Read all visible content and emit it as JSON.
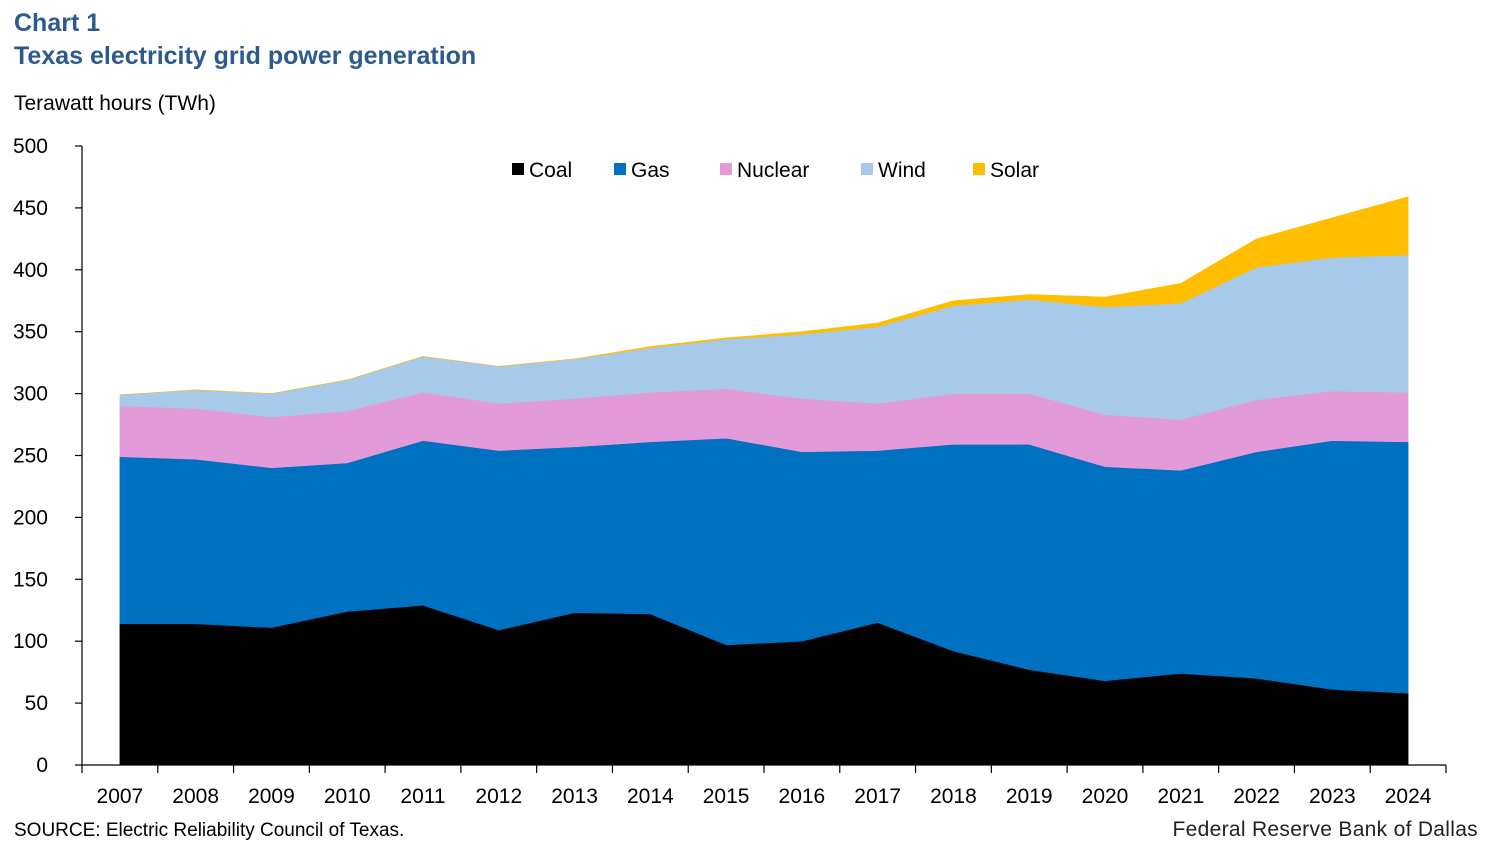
{
  "header": {
    "chart_label": "Chart 1",
    "title": "Texas electricity grid power generation",
    "unit_label": "Terawatt hours (TWh)"
  },
  "footer": {
    "source": "SOURCE: Electric Reliability Council of Texas.",
    "credit": "Federal Reserve Bank of Dallas"
  },
  "colors": {
    "coal": "#000000",
    "gas": "#0070c0",
    "nuclear": "#e39ad8",
    "wind": "#a7c9ea",
    "solar": "#ffbf00",
    "title": "#2c5a8c"
  },
  "chart_data": {
    "type": "area",
    "stacked": true,
    "title": "Texas electricity grid power generation",
    "ylabel": "Terawatt hours (TWh)",
    "xlabel": "",
    "ylim": [
      0,
      500
    ],
    "yticks": [
      0,
      50,
      100,
      150,
      200,
      250,
      300,
      350,
      400,
      450,
      500
    ],
    "grid": false,
    "legend": "top-center",
    "categories": [
      "2007",
      "2008",
      "2009",
      "2010",
      "2011",
      "2012",
      "2013",
      "2014",
      "2015",
      "2016",
      "2017",
      "2018",
      "2019",
      "2020",
      "2021",
      "2022",
      "2023",
      "2024"
    ],
    "series": [
      {
        "name": "Coal",
        "key": "coal",
        "values": [
          114,
          114,
          111,
          124,
          129,
          109,
          123,
          122,
          97,
          100,
          115,
          92,
          77,
          68,
          74,
          70,
          61,
          58
        ]
      },
      {
        "name": "Gas",
        "key": "gas",
        "values": [
          135,
          133,
          129,
          120,
          133,
          145,
          134,
          139,
          167,
          153,
          139,
          167,
          182,
          173,
          164,
          183,
          201,
          203
        ]
      },
      {
        "name": "Nuclear",
        "key": "nuclear",
        "values": [
          41,
          41,
          41,
          42,
          39,
          38,
          39,
          40,
          40,
          43,
          38,
          41,
          41,
          42,
          41,
          42,
          40,
          40
        ]
      },
      {
        "name": "Wind",
        "key": "wind",
        "values": [
          9,
          15,
          19,
          25,
          29,
          30,
          32,
          36,
          40,
          52,
          62,
          71,
          76,
          87,
          94,
          107,
          108,
          111
        ]
      },
      {
        "name": "Solar",
        "key": "solar",
        "values": [
          0,
          0,
          0,
          0,
          0,
          0,
          0,
          1,
          1,
          2,
          3,
          4,
          4,
          8,
          16,
          23,
          32,
          47
        ]
      }
    ]
  }
}
